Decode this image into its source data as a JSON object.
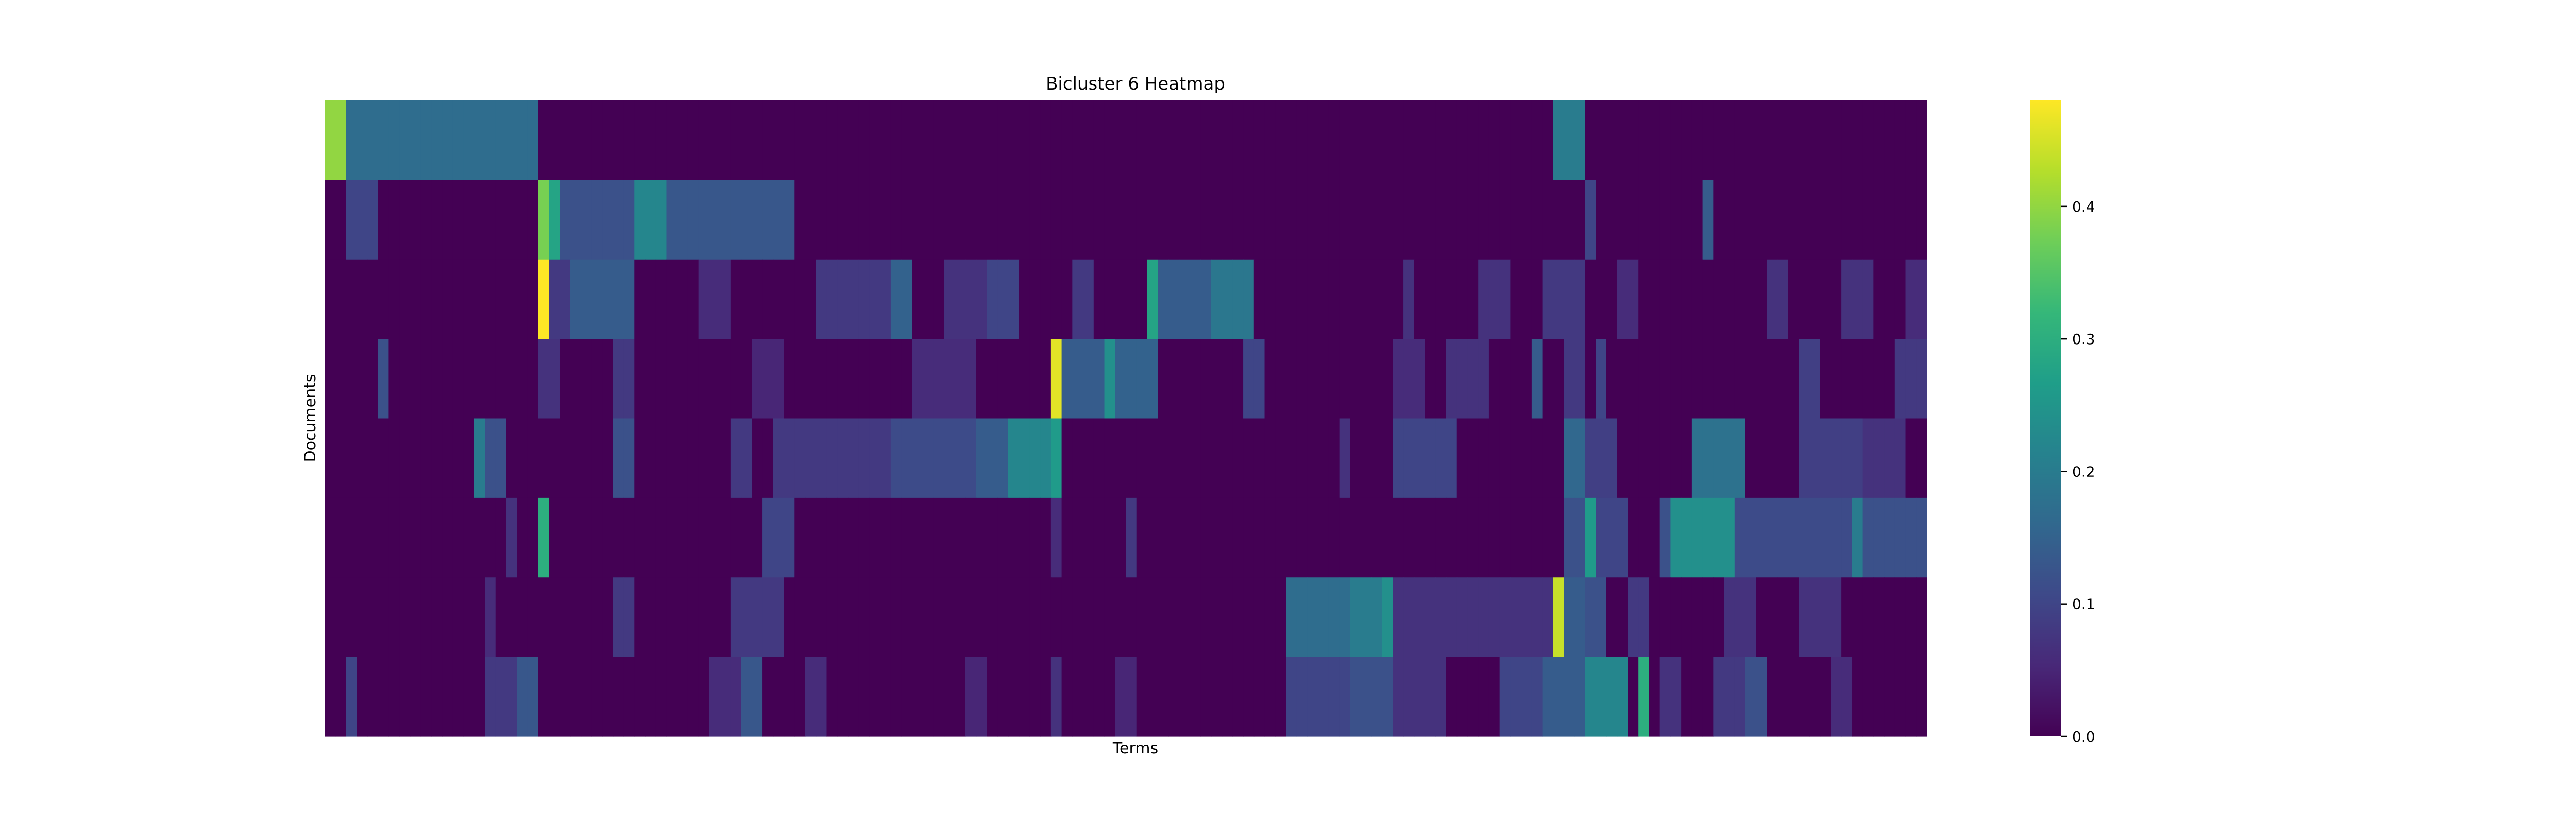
{
  "chart_data": {
    "type": "heatmap",
    "title": "Bicluster 6 Heatmap",
    "xlabel": "Terms",
    "ylabel": "Documents",
    "colormap": "viridis",
    "vmin": 0.0,
    "vmax": 0.48,
    "n_columns": 150,
    "colorbar": {
      "ticks": [
        0.0,
        0.1,
        0.2,
        0.3,
        0.4
      ],
      "tick_labels": [
        "0.0",
        "0.1",
        "0.2",
        "0.3",
        "0.4"
      ]
    },
    "rows": [
      {
        "base": 0.0,
        "segments": [
          [
            0,
            1,
            0.4
          ],
          [
            2,
            19,
            0.17
          ],
          [
            115,
            117,
            0.2
          ]
        ]
      },
      {
        "base": 0.0,
        "segments": [
          [
            2,
            4,
            0.1
          ],
          [
            20,
            20,
            0.38
          ],
          [
            21,
            21,
            0.28
          ],
          [
            22,
            28,
            0.12
          ],
          [
            29,
            31,
            0.22
          ],
          [
            32,
            43,
            0.13
          ],
          [
            118,
            118,
            0.1
          ],
          [
            129,
            129,
            0.14
          ]
        ]
      },
      {
        "base": 0.0,
        "segments": [
          [
            20,
            20,
            0.48
          ],
          [
            21,
            22,
            0.08
          ],
          [
            23,
            28,
            0.14
          ],
          [
            35,
            37,
            0.06
          ],
          [
            46,
            52,
            0.08
          ],
          [
            53,
            54,
            0.15
          ],
          [
            58,
            61,
            0.07
          ],
          [
            62,
            64,
            0.1
          ],
          [
            70,
            71,
            0.08
          ],
          [
            77,
            77,
            0.28
          ],
          [
            78,
            82,
            0.14
          ],
          [
            83,
            86,
            0.19
          ],
          [
            101,
            101,
            0.07
          ],
          [
            108,
            110,
            0.07
          ],
          [
            114,
            117,
            0.08
          ],
          [
            121,
            122,
            0.06
          ],
          [
            135,
            136,
            0.07
          ],
          [
            142,
            144,
            0.07
          ],
          [
            148,
            149,
            0.06
          ]
        ]
      },
      {
        "base": 0.0,
        "segments": [
          [
            5,
            5,
            0.12
          ],
          [
            20,
            21,
            0.07
          ],
          [
            27,
            28,
            0.08
          ],
          [
            40,
            42,
            0.05
          ],
          [
            55,
            60,
            0.06
          ],
          [
            68,
            68,
            0.46
          ],
          [
            69,
            72,
            0.14
          ],
          [
            73,
            73,
            0.24
          ],
          [
            74,
            77,
            0.15
          ],
          [
            86,
            87,
            0.1
          ],
          [
            100,
            102,
            0.06
          ],
          [
            105,
            108,
            0.07
          ],
          [
            113,
            113,
            0.14
          ],
          [
            116,
            117,
            0.08
          ],
          [
            119,
            119,
            0.1
          ],
          [
            138,
            139,
            0.09
          ],
          [
            147,
            149,
            0.08
          ]
        ]
      },
      {
        "base": 0.0,
        "segments": [
          [
            14,
            14,
            0.2
          ],
          [
            15,
            16,
            0.12
          ],
          [
            27,
            28,
            0.12
          ],
          [
            38,
            39,
            0.08
          ],
          [
            42,
            52,
            0.08
          ],
          [
            53,
            60,
            0.11
          ],
          [
            61,
            63,
            0.14
          ],
          [
            64,
            67,
            0.22
          ],
          [
            68,
            68,
            0.26
          ],
          [
            95,
            95,
            0.07
          ],
          [
            100,
            105,
            0.1
          ],
          [
            116,
            117,
            0.16
          ],
          [
            118,
            120,
            0.09
          ],
          [
            128,
            132,
            0.18
          ],
          [
            138,
            143,
            0.09
          ],
          [
            144,
            147,
            0.07
          ]
        ]
      },
      {
        "base": 0.0,
        "segments": [
          [
            17,
            17,
            0.07
          ],
          [
            20,
            20,
            0.3
          ],
          [
            41,
            43,
            0.1
          ],
          [
            68,
            68,
            0.06
          ],
          [
            75,
            75,
            0.08
          ],
          [
            116,
            117,
            0.12
          ],
          [
            118,
            118,
            0.26
          ],
          [
            119,
            121,
            0.1
          ],
          [
            125,
            125,
            0.12
          ],
          [
            126,
            131,
            0.24
          ],
          [
            132,
            142,
            0.11
          ],
          [
            143,
            143,
            0.2
          ],
          [
            144,
            149,
            0.12
          ]
        ]
      },
      {
        "base": 0.0,
        "segments": [
          [
            15,
            15,
            0.06
          ],
          [
            27,
            28,
            0.08
          ],
          [
            38,
            42,
            0.08
          ],
          [
            90,
            95,
            0.17
          ],
          [
            96,
            98,
            0.2
          ],
          [
            99,
            99,
            0.24
          ],
          [
            100,
            114,
            0.07
          ],
          [
            115,
            115,
            0.44
          ],
          [
            116,
            117,
            0.14
          ],
          [
            118,
            119,
            0.12
          ],
          [
            122,
            123,
            0.08
          ],
          [
            131,
            133,
            0.07
          ],
          [
            138,
            141,
            0.07
          ]
        ]
      },
      {
        "base": 0.0,
        "segments": [
          [
            2,
            2,
            0.1
          ],
          [
            15,
            18,
            0.08
          ],
          [
            18,
            19,
            0.13
          ],
          [
            36,
            38,
            0.06
          ],
          [
            39,
            40,
            0.13
          ],
          [
            45,
            46,
            0.06
          ],
          [
            60,
            61,
            0.05
          ],
          [
            68,
            68,
            0.07
          ],
          [
            74,
            75,
            0.05
          ],
          [
            90,
            95,
            0.1
          ],
          [
            96,
            99,
            0.12
          ],
          [
            100,
            104,
            0.07
          ],
          [
            110,
            113,
            0.1
          ],
          [
            114,
            117,
            0.14
          ],
          [
            118,
            121,
            0.22
          ],
          [
            123,
            123,
            0.3
          ],
          [
            125,
            126,
            0.07
          ],
          [
            130,
            132,
            0.08
          ],
          [
            133,
            134,
            0.12
          ],
          [
            141,
            142,
            0.06
          ]
        ]
      }
    ]
  },
  "colors": {
    "viridis": [
      "#440154",
      "#482878",
      "#3e4989",
      "#31688e",
      "#26828e",
      "#1f9e89",
      "#35b779",
      "#6ece58",
      "#b5de2b",
      "#fde725"
    ]
  }
}
